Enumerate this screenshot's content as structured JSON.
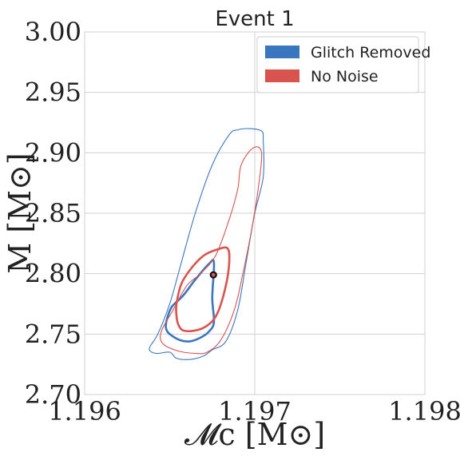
{
  "chart_data": {
    "type": "contour",
    "title": "Event 1",
    "xlabel": "𝓜c [M⊙]",
    "ylabel": "M [M⊙]",
    "xlim": [
      1.196,
      1.198
    ],
    "ylim": [
      2.7,
      3.0
    ],
    "xticks": [
      "1.196",
      "1.197",
      "1.198"
    ],
    "yticks": [
      "2.70",
      "2.75",
      "2.80",
      "2.85",
      "2.90",
      "2.95",
      "3.00"
    ],
    "grid": true,
    "legend_position": "top-right",
    "series": [
      {
        "name": "Glitch Removed",
        "color": "#3a76c0",
        "outer": [
          [
            1.1965,
            2.735
          ],
          [
            1.19654,
            2.73
          ],
          [
            1.19662,
            2.729
          ],
          [
            1.1967,
            2.732
          ],
          [
            1.19675,
            2.737
          ],
          [
            1.19683,
            2.744
          ],
          [
            1.1969,
            2.77
          ],
          [
            1.19695,
            2.81
          ],
          [
            1.197,
            2.85
          ],
          [
            1.19705,
            2.88
          ],
          [
            1.19705,
            2.91
          ],
          [
            1.19704,
            2.918
          ],
          [
            1.19697,
            2.92
          ],
          [
            1.1969,
            2.919
          ],
          [
            1.19685,
            2.915
          ],
          [
            1.19675,
            2.89
          ],
          [
            1.19665,
            2.85
          ],
          [
            1.19657,
            2.81
          ],
          [
            1.1965,
            2.775
          ],
          [
            1.19643,
            2.75
          ],
          [
            1.19638,
            2.738
          ],
          [
            1.19642,
            2.734
          ]
        ],
        "inner": [
          [
            1.1965,
            2.75
          ],
          [
            1.19656,
            2.745
          ],
          [
            1.19662,
            2.744
          ],
          [
            1.19668,
            2.747
          ],
          [
            1.19673,
            2.752
          ],
          [
            1.19676,
            2.76
          ],
          [
            1.19675,
            2.78
          ],
          [
            1.19676,
            2.809
          ],
          [
            1.19673,
            2.808
          ],
          [
            1.19665,
            2.795
          ],
          [
            1.19658,
            2.782
          ],
          [
            1.19651,
            2.772
          ],
          [
            1.19648,
            2.76
          ],
          [
            1.19648,
            2.754
          ]
        ]
      },
      {
        "name": "No Noise",
        "color": "#d9534f",
        "outer": [
          [
            1.19646,
            2.742
          ],
          [
            1.19655,
            2.736
          ],
          [
            1.19665,
            2.734
          ],
          [
            1.19672,
            2.735
          ],
          [
            1.1968,
            2.745
          ],
          [
            1.19688,
            2.77
          ],
          [
            1.19693,
            2.8
          ],
          [
            1.19698,
            2.835
          ],
          [
            1.19702,
            2.87
          ],
          [
            1.19704,
            2.9
          ],
          [
            1.19699,
            2.904
          ],
          [
            1.19692,
            2.89
          ],
          [
            1.1969,
            2.87
          ],
          [
            1.19685,
            2.845
          ],
          [
            1.19677,
            2.815
          ],
          [
            1.19668,
            2.8
          ],
          [
            1.1966,
            2.79
          ],
          [
            1.19652,
            2.77
          ],
          [
            1.19645,
            2.752
          ]
        ],
        "inner": [
          [
            1.19655,
            2.758
          ],
          [
            1.19658,
            2.753
          ],
          [
            1.19665,
            2.753
          ],
          [
            1.19672,
            2.757
          ],
          [
            1.19678,
            2.767
          ],
          [
            1.19683,
            2.79
          ],
          [
            1.19685,
            2.81
          ],
          [
            1.19684,
            2.821
          ],
          [
            1.19678,
            2.82
          ],
          [
            1.1967,
            2.815
          ],
          [
            1.19663,
            2.805
          ],
          [
            1.19657,
            2.792
          ],
          [
            1.19654,
            2.775
          ],
          [
            1.19654,
            2.765
          ]
        ]
      }
    ],
    "marker": {
      "x": 1.196757,
      "y": 2.799
    }
  }
}
